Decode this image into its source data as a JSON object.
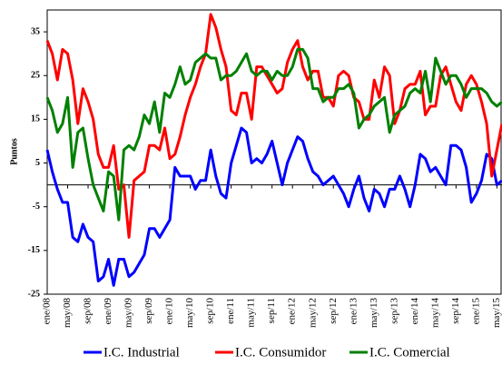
{
  "chart_data": {
    "type": "line",
    "ylabel": "Puntos",
    "ylim": [
      -25,
      40
    ],
    "yticks": [
      -25,
      -15,
      -5,
      5,
      15,
      25,
      35
    ],
    "categories": [
      "ene/08",
      null,
      null,
      null,
      "may/08",
      null,
      null,
      null,
      "sep/08",
      null,
      null,
      null,
      "ene/09",
      null,
      null,
      null,
      "may/09",
      null,
      null,
      null,
      "sep/09",
      null,
      null,
      null,
      "ene/10",
      null,
      null,
      null,
      "may/10",
      null,
      null,
      null,
      "sep/10",
      null,
      null,
      null,
      "ene/11",
      null,
      null,
      null,
      "may/11",
      null,
      null,
      null,
      "sep/11",
      null,
      null,
      null,
      "ene/12",
      null,
      null,
      null,
      "may/12",
      null,
      null,
      null,
      "sep/12",
      null,
      null,
      null,
      "ene/13",
      null,
      null,
      null,
      "may/13",
      null,
      null,
      null,
      "sep/13",
      null,
      null,
      null,
      "ene/14",
      null,
      null,
      null,
      "may/14",
      null,
      null,
      null,
      "sep/14",
      null,
      null,
      null,
      "ene/15",
      null,
      null,
      null,
      "may/15",
      null
    ],
    "series": [
      {
        "name": "I.C. Industrial",
        "color": "#0000ff",
        "values": [
          8,
          3,
          -1,
          -4,
          -4,
          -12,
          -13,
          -9,
          -12,
          -13,
          -22,
          -21,
          -17,
          -23,
          -17,
          -17,
          -21,
          -20,
          -18,
          -16,
          -10,
          -10,
          -12,
          -10,
          -8,
          4,
          2,
          2,
          2,
          -1,
          1,
          1,
          8,
          2,
          -2,
          -3,
          5,
          9,
          13,
          12,
          5,
          6,
          5,
          7,
          10,
          5,
          0,
          5,
          8,
          11,
          10,
          6,
          3,
          2,
          0,
          1,
          2,
          0,
          -2,
          -5,
          -1,
          2,
          -3,
          -6,
          -1,
          -2,
          -5,
          -1,
          -1,
          2,
          -1,
          -5,
          0,
          7,
          6,
          3,
          4,
          2,
          0,
          9,
          9,
          8,
          4,
          -4,
          -2,
          1,
          7,
          6,
          0,
          1
        ]
      },
      {
        "name": "I.C. Consumidor",
        "color": "#ff0000",
        "values": [
          33,
          30,
          24,
          31,
          30,
          24,
          14,
          22,
          19,
          15,
          7,
          4,
          4,
          9,
          -1,
          0,
          -12,
          1,
          2,
          3,
          9,
          9,
          8,
          13,
          6,
          7,
          11,
          16,
          20,
          23,
          27,
          30,
          39,
          36,
          31,
          27,
          17,
          16,
          21,
          21,
          15,
          27,
          27,
          25,
          23,
          21,
          22,
          28,
          31,
          33,
          27,
          24,
          26,
          26,
          20,
          20,
          18,
          25,
          26,
          25,
          20,
          19,
          15,
          15,
          24,
          20,
          27,
          25,
          14,
          17,
          22,
          23,
          23,
          26,
          16,
          18,
          18,
          25,
          27,
          23,
          19,
          17,
          23,
          25,
          23,
          19,
          14,
          2,
          8,
          14
        ]
      },
      {
        "name": "I.C. Comercial",
        "color": "#008000",
        "values": [
          20,
          17,
          12,
          14,
          20,
          4,
          12,
          13,
          6,
          0,
          -3,
          -6,
          3,
          2,
          -8,
          8,
          9,
          8,
          11,
          16,
          14,
          19,
          12,
          21,
          20,
          23,
          27,
          23,
          24,
          28,
          29,
          30,
          29,
          29,
          24,
          25,
          25,
          26,
          28,
          30,
          26,
          25,
          26,
          26,
          24,
          26,
          25,
          25,
          27,
          31,
          31,
          29,
          22,
          22,
          19,
          20,
          20,
          22,
          22,
          23,
          21,
          13,
          15,
          16,
          18,
          19,
          20,
          12,
          16,
          17,
          18,
          21,
          22,
          21,
          26,
          19,
          29,
          26,
          23,
          25,
          25,
          23,
          20,
          22,
          22,
          22,
          21,
          19,
          18,
          19
        ]
      }
    ]
  }
}
